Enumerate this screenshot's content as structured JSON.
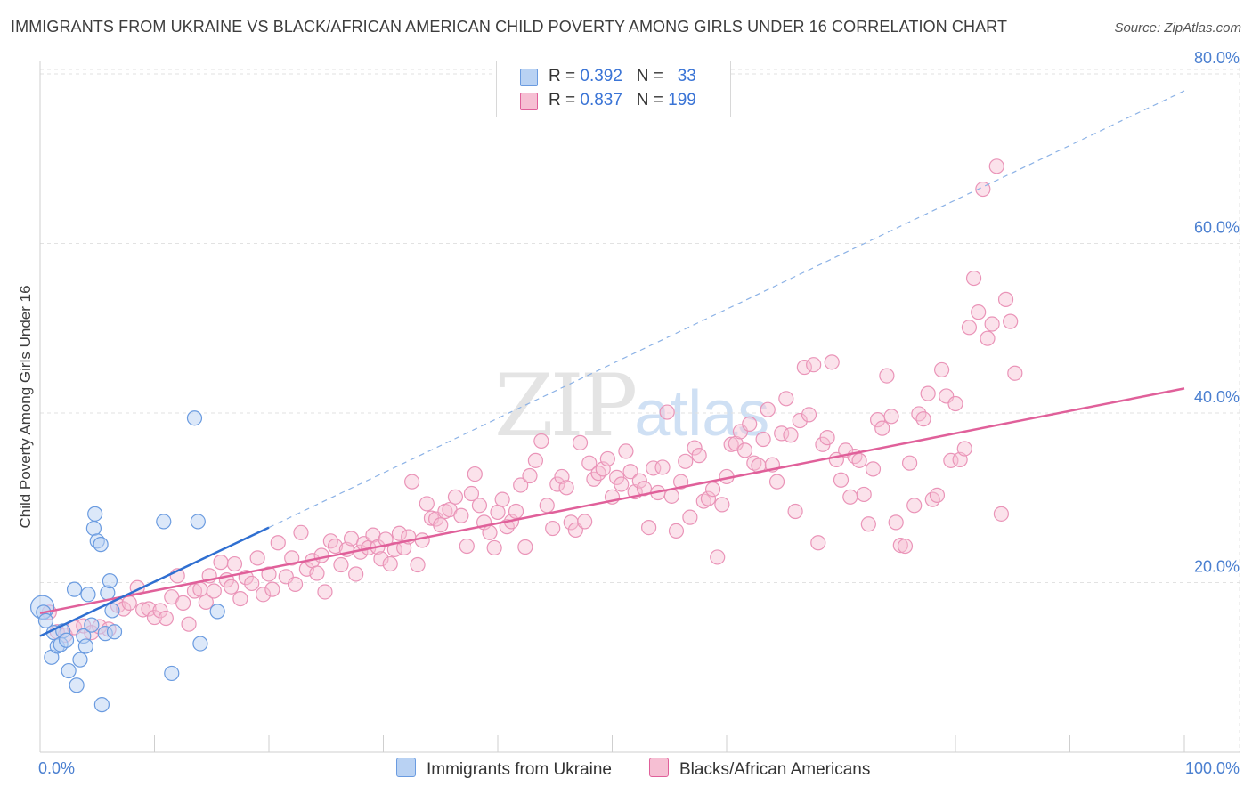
{
  "title": "IMMIGRANTS FROM UKRAINE VS BLACK/AFRICAN AMERICAN CHILD POVERTY AMONG GIRLS UNDER 16 CORRELATION CHART",
  "source": "Source: ZipAtlas.com",
  "watermark": {
    "zip": "ZIP",
    "atlas": "atlas"
  },
  "colors": {
    "blue": "#6a9be0",
    "blue_fill": "#b9d2f3",
    "pink": "#e0609a",
    "pink_fill": "#f6bfd3",
    "axis_label": "#4a7fd0"
  },
  "legend": {
    "rows": [
      {
        "r_label": "R = ",
        "r_value": "0.392",
        "n_label": "N = ",
        "n_value": "33"
      },
      {
        "r_label": "R = ",
        "r_value": "0.837",
        "n_label": "N = ",
        "n_value": "199"
      }
    ]
  },
  "bottom_legend": {
    "ukraine": "Immigrants from Ukraine",
    "black": "Blacks/African Americans"
  },
  "chart_data": {
    "type": "scatter",
    "title": "IMMIGRANTS FROM UKRAINE VS BLACK/AFRICAN AMERICAN CHILD POVERTY AMONG GIRLS UNDER 16 CORRELATION CHART",
    "xlabel": "",
    "ylabel": "Child Poverty Among Girls Under 16",
    "xlim": [
      0,
      100
    ],
    "ylim": [
      0,
      83
    ],
    "x_tick_labels": [
      "0.0%",
      "100.0%"
    ],
    "y_ticks": [
      20,
      40,
      60,
      80
    ],
    "y_tick_labels": [
      "20.0%",
      "40.0%",
      "60.0%",
      "80.0%"
    ],
    "grid": true,
    "series": [
      {
        "name": "Immigrants from Ukraine",
        "r": 0.392,
        "n": 33,
        "trend_solid": {
          "x": [
            0,
            20
          ],
          "y": [
            13.7,
            26.5
          ]
        },
        "trend_dashed": {
          "x": [
            20,
            100
          ],
          "y": [
            26.5,
            78.0
          ]
        },
        "points": [
          [
            0.2,
            17.1
          ],
          [
            0.3,
            16.5
          ],
          [
            0.5,
            15.5
          ],
          [
            1.0,
            11.2
          ],
          [
            1.2,
            14.1
          ],
          [
            1.5,
            12.5
          ],
          [
            1.8,
            12.7
          ],
          [
            2.0,
            14.3
          ],
          [
            2.3,
            13.2
          ],
          [
            2.5,
            9.6
          ],
          [
            3.0,
            19.2
          ],
          [
            3.2,
            7.9
          ],
          [
            3.5,
            10.9
          ],
          [
            3.8,
            13.7
          ],
          [
            4.0,
            12.5
          ],
          [
            4.2,
            18.6
          ],
          [
            4.5,
            15.0
          ],
          [
            4.7,
            26.4
          ],
          [
            4.8,
            28.1
          ],
          [
            5.0,
            24.9
          ],
          [
            5.3,
            24.5
          ],
          [
            5.4,
            5.6
          ],
          [
            5.7,
            14.0
          ],
          [
            5.9,
            18.8
          ],
          [
            6.1,
            20.2
          ],
          [
            6.3,
            16.7
          ],
          [
            6.5,
            14.2
          ],
          [
            10.8,
            27.2
          ],
          [
            11.5,
            9.3
          ],
          [
            13.5,
            39.4
          ],
          [
            13.8,
            27.2
          ],
          [
            14.0,
            12.8
          ],
          [
            15.5,
            16.6
          ]
        ]
      },
      {
        "name": "Blacks/African Americans",
        "r": 0.837,
        "n": 199,
        "trend": {
          "x": [
            0,
            100
          ],
          "y": [
            16.4,
            42.9
          ]
        },
        "points": [
          [
            0.8,
            16.5
          ],
          [
            1.5,
            14.2
          ],
          [
            2.2,
            13.8
          ],
          [
            3.0,
            14.7
          ],
          [
            3.8,
            14.9
          ],
          [
            4.5,
            14.1
          ],
          [
            5.2,
            14.8
          ],
          [
            6.0,
            14.5
          ],
          [
            6.8,
            17.3
          ],
          [
            7.3,
            16.9
          ],
          [
            7.8,
            17.6
          ],
          [
            8.5,
            19.4
          ],
          [
            9.0,
            16.8
          ],
          [
            9.5,
            16.9
          ],
          [
            10.0,
            15.9
          ],
          [
            10.5,
            16.7
          ],
          [
            11.0,
            15.8
          ],
          [
            11.5,
            18.3
          ],
          [
            12.0,
            20.8
          ],
          [
            12.5,
            17.6
          ],
          [
            13.0,
            15.1
          ],
          [
            13.5,
            19.0
          ],
          [
            14.0,
            19.2
          ],
          [
            14.5,
            17.7
          ],
          [
            14.8,
            20.8
          ],
          [
            15.2,
            19.0
          ],
          [
            15.8,
            22.4
          ],
          [
            16.3,
            20.3
          ],
          [
            16.7,
            19.5
          ],
          [
            17.0,
            22.2
          ],
          [
            17.5,
            18.1
          ],
          [
            18.0,
            20.6
          ],
          [
            18.5,
            19.9
          ],
          [
            19.0,
            22.9
          ],
          [
            19.5,
            18.6
          ],
          [
            20.0,
            21.0
          ],
          [
            20.3,
            19.2
          ],
          [
            20.8,
            24.7
          ],
          [
            21.5,
            20.7
          ],
          [
            22.0,
            22.9
          ],
          [
            22.3,
            19.8
          ],
          [
            22.8,
            25.9
          ],
          [
            23.3,
            21.6
          ],
          [
            23.8,
            22.6
          ],
          [
            24.2,
            21.1
          ],
          [
            24.6,
            23.2
          ],
          [
            24.9,
            18.9
          ],
          [
            25.4,
            24.9
          ],
          [
            25.8,
            24.3
          ],
          [
            26.3,
            22.1
          ],
          [
            26.8,
            23.9
          ],
          [
            27.2,
            25.2
          ],
          [
            27.6,
            21.0
          ],
          [
            28.0,
            23.6
          ],
          [
            28.3,
            24.6
          ],
          [
            28.7,
            24.1
          ],
          [
            29.1,
            25.6
          ],
          [
            29.5,
            24.2
          ],
          [
            29.8,
            22.8
          ],
          [
            30.2,
            25.1
          ],
          [
            30.6,
            22.2
          ],
          [
            31.0,
            23.9
          ],
          [
            31.4,
            25.8
          ],
          [
            31.8,
            24.1
          ],
          [
            32.2,
            25.4
          ],
          [
            32.5,
            31.9
          ],
          [
            33.0,
            22.1
          ],
          [
            33.4,
            25.0
          ],
          [
            33.8,
            29.3
          ],
          [
            34.2,
            27.6
          ],
          [
            34.6,
            27.5
          ],
          [
            35.0,
            26.8
          ],
          [
            35.4,
            28.4
          ],
          [
            35.8,
            28.6
          ],
          [
            36.3,
            30.1
          ],
          [
            36.8,
            27.9
          ],
          [
            37.3,
            24.3
          ],
          [
            37.7,
            30.5
          ],
          [
            38.0,
            32.8
          ],
          [
            38.4,
            29.1
          ],
          [
            38.8,
            27.1
          ],
          [
            39.3,
            25.9
          ],
          [
            39.7,
            24.1
          ],
          [
            40.0,
            28.3
          ],
          [
            40.4,
            29.8
          ],
          [
            40.8,
            26.6
          ],
          [
            41.2,
            27.2
          ],
          [
            41.6,
            28.4
          ],
          [
            42.0,
            31.5
          ],
          [
            42.4,
            24.2
          ],
          [
            42.8,
            32.6
          ],
          [
            43.3,
            34.4
          ],
          [
            43.8,
            36.7
          ],
          [
            44.3,
            29.1
          ],
          [
            44.8,
            26.4
          ],
          [
            45.2,
            31.6
          ],
          [
            45.6,
            32.5
          ],
          [
            46.0,
            31.2
          ],
          [
            46.4,
            27.1
          ],
          [
            46.8,
            26.2
          ],
          [
            47.2,
            36.5
          ],
          [
            47.6,
            27.2
          ],
          [
            48.0,
            34.1
          ],
          [
            48.4,
            32.2
          ],
          [
            48.8,
            32.9
          ],
          [
            49.2,
            33.4
          ],
          [
            49.6,
            34.6
          ],
          [
            50.0,
            30.1
          ],
          [
            50.4,
            32.4
          ],
          [
            50.8,
            31.6
          ],
          [
            51.2,
            35.5
          ],
          [
            51.6,
            33.1
          ],
          [
            52.0,
            30.7
          ],
          [
            52.4,
            32.0
          ],
          [
            52.8,
            31.1
          ],
          [
            53.2,
            26.5
          ],
          [
            53.6,
            33.5
          ],
          [
            54.0,
            30.6
          ],
          [
            54.4,
            33.6
          ],
          [
            54.8,
            40.1
          ],
          [
            55.2,
            30.2
          ],
          [
            55.6,
            26.1
          ],
          [
            56.0,
            31.9
          ],
          [
            56.4,
            34.3
          ],
          [
            56.8,
            27.7
          ],
          [
            57.2,
            35.9
          ],
          [
            57.6,
            35.0
          ],
          [
            58.0,
            29.6
          ],
          [
            58.4,
            29.9
          ],
          [
            58.8,
            31.0
          ],
          [
            59.2,
            23.0
          ],
          [
            59.6,
            29.2
          ],
          [
            60.0,
            32.5
          ],
          [
            60.4,
            36.3
          ],
          [
            60.8,
            36.4
          ],
          [
            61.2,
            37.8
          ],
          [
            61.6,
            35.6
          ],
          [
            62.0,
            38.7
          ],
          [
            62.4,
            34.1
          ],
          [
            62.8,
            33.8
          ],
          [
            63.2,
            36.9
          ],
          [
            63.6,
            40.4
          ],
          [
            64.0,
            33.9
          ],
          [
            64.4,
            31.9
          ],
          [
            64.8,
            37.6
          ],
          [
            65.2,
            41.7
          ],
          [
            65.6,
            37.4
          ],
          [
            66.0,
            28.4
          ],
          [
            66.4,
            39.1
          ],
          [
            66.8,
            45.4
          ],
          [
            67.2,
            39.8
          ],
          [
            67.6,
            45.7
          ],
          [
            68.0,
            24.7
          ],
          [
            68.4,
            36.3
          ],
          [
            68.8,
            37.1
          ],
          [
            69.2,
            46.0
          ],
          [
            69.6,
            34.5
          ],
          [
            70.0,
            32.1
          ],
          [
            70.4,
            35.6
          ],
          [
            70.8,
            30.1
          ],
          [
            71.2,
            34.9
          ],
          [
            71.6,
            34.4
          ],
          [
            72.0,
            30.4
          ],
          [
            72.4,
            26.9
          ],
          [
            72.8,
            33.4
          ],
          [
            73.2,
            39.2
          ],
          [
            73.6,
            38.2
          ],
          [
            74.0,
            44.4
          ],
          [
            74.4,
            39.6
          ],
          [
            74.8,
            27.1
          ],
          [
            75.2,
            24.4
          ],
          [
            75.6,
            24.3
          ],
          [
            76.0,
            34.1
          ],
          [
            76.4,
            29.1
          ],
          [
            76.8,
            39.9
          ],
          [
            77.2,
            39.3
          ],
          [
            77.6,
            42.3
          ],
          [
            78.0,
            29.8
          ],
          [
            78.4,
            30.3
          ],
          [
            78.8,
            45.1
          ],
          [
            79.2,
            42.0
          ],
          [
            79.6,
            34.4
          ],
          [
            80.0,
            41.1
          ],
          [
            80.4,
            34.5
          ],
          [
            80.8,
            35.8
          ],
          [
            81.2,
            50.1
          ],
          [
            81.6,
            55.9
          ],
          [
            82.0,
            51.9
          ],
          [
            82.4,
            66.4
          ],
          [
            82.8,
            48.8
          ],
          [
            83.2,
            50.5
          ],
          [
            83.6,
            69.1
          ],
          [
            84.0,
            28.1
          ],
          [
            84.4,
            53.4
          ],
          [
            84.8,
            50.8
          ],
          [
            85.2,
            44.7
          ]
        ]
      }
    ]
  }
}
